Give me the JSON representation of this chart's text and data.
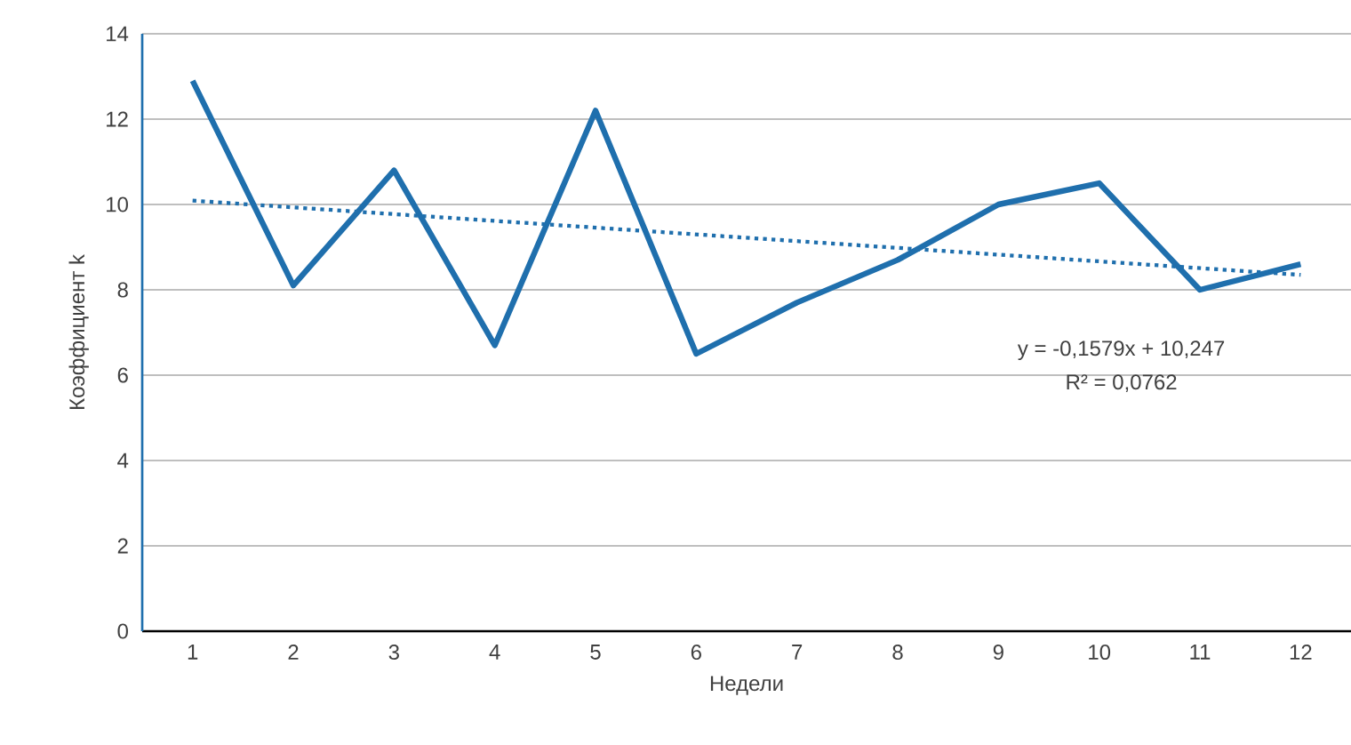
{
  "chart_data": {
    "type": "line",
    "xlabel": "Недели",
    "ylabel": "Коэффициент k",
    "x": [
      1,
      2,
      3,
      4,
      5,
      6,
      7,
      8,
      9,
      10,
      11,
      12
    ],
    "xlim": [
      0.5,
      12.5
    ],
    "xticks": [
      1,
      2,
      3,
      4,
      5,
      6,
      7,
      8,
      9,
      10,
      11,
      12
    ],
    "ylim": [
      0,
      14
    ],
    "yticks": [
      0,
      2,
      4,
      6,
      8,
      10,
      12,
      14
    ],
    "grid": "y",
    "marker": "none",
    "series": [
      {
        "color": "#1f6fad",
        "line_style": "solid",
        "values": [
          12.9,
          8.1,
          10.8,
          6.7,
          12.2,
          6.5,
          7.7,
          8.7,
          10.0,
          10.5,
          8.0,
          8.6
        ]
      },
      {
        "color": "#1f6fad",
        "line_style": "dotted",
        "x": [
          1,
          12
        ],
        "values": [
          10.09,
          8.35
        ]
      }
    ],
    "annotations": [
      "y = -0,1579x + 10,247",
      "R² = 0,0762"
    ]
  }
}
